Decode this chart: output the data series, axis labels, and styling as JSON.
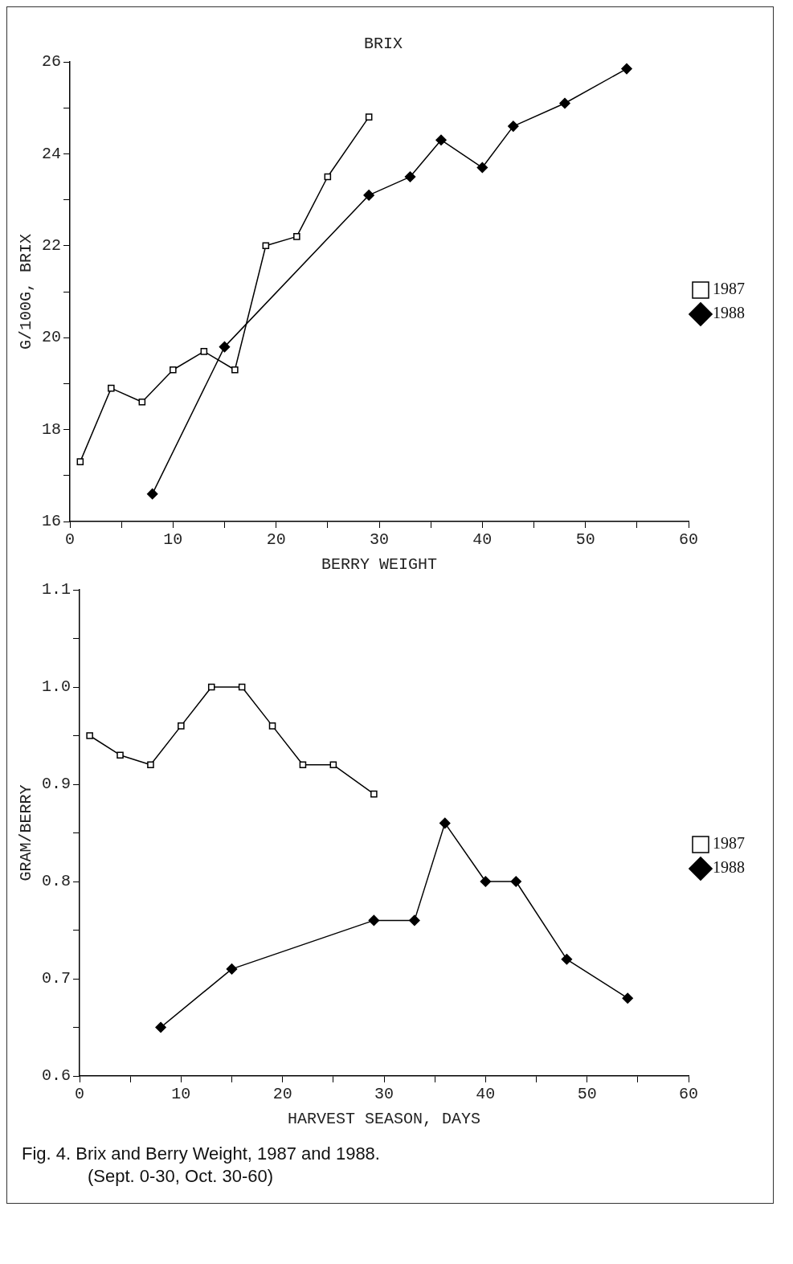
{
  "chart_data": [
    {
      "type": "line",
      "title": "BRIX",
      "xlabel": "BERRY WEIGHT",
      "ylabel": "G/100G, BRIX",
      "xlim": [
        0,
        60
      ],
      "xticks": [
        0,
        {
          "value": 5,
          "label": null
        },
        10,
        {
          "value": 15,
          "label": null
        },
        20,
        {
          "value": 25,
          "label": null
        },
        30,
        {
          "value": 35,
          "label": null
        },
        40,
        {
          "value": 45,
          "label": null
        },
        50,
        {
          "value": 55,
          "label": null
        },
        60
      ],
      "ylim": [
        16,
        26
      ],
      "yticks": [
        16,
        {
          "value": 17,
          "label": null
        },
        18,
        {
          "value": 19,
          "label": null
        },
        20,
        {
          "value": 21,
          "label": null
        },
        22,
        {
          "value": 23,
          "label": null
        },
        24,
        {
          "value": 25,
          "label": null
        },
        26
      ],
      "grid": false,
      "legend": "right",
      "line_style": "solid",
      "series": [
        {
          "name": "1987",
          "color": "#000000",
          "marker": "square",
          "x": [
            1,
            4,
            7,
            10,
            13,
            16,
            19,
            22,
            25,
            29
          ],
          "values": [
            17.3,
            18.9,
            18.6,
            19.3,
            19.7,
            19.3,
            22.0,
            22.2,
            23.5,
            24.8
          ]
        },
        {
          "name": "1988",
          "color": "#000000",
          "marker": "diamond",
          "x": [
            8,
            15,
            29,
            33,
            36,
            40,
            43,
            48,
            54
          ],
          "values": [
            16.6,
            19.8,
            23.1,
            23.5,
            24.3,
            23.7,
            24.6,
            25.1,
            25.85
          ]
        }
      ]
    },
    {
      "type": "line",
      "xlabel": "HARVEST SEASON, DAYS",
      "ylabel": "GRAM/BERRY",
      "xlim": [
        0,
        60
      ],
      "xticks": [
        0,
        {
          "value": 5,
          "label": null
        },
        10,
        {
          "value": 15,
          "label": null
        },
        20,
        {
          "value": 25,
          "label": null
        },
        30,
        {
          "value": 35,
          "label": null
        },
        40,
        {
          "value": 45,
          "label": null
        },
        50,
        {
          "value": 55,
          "label": null
        },
        60
      ],
      "ylim": [
        0.6,
        1.1
      ],
      "yticks": [
        {
          "value": 0.6,
          "label": "0.6"
        },
        {
          "value": 0.65,
          "label": null
        },
        {
          "value": 0.7,
          "label": "0.7"
        },
        {
          "value": 0.75,
          "label": null
        },
        {
          "value": 0.8,
          "label": "0.8"
        },
        {
          "value": 0.85,
          "label": null
        },
        {
          "value": 0.9,
          "label": "0.9"
        },
        {
          "value": 0.95,
          "label": null
        },
        {
          "value": 1.0,
          "label": "1.0"
        },
        {
          "value": 1.05,
          "label": null
        },
        {
          "value": 1.1,
          "label": "1.1"
        }
      ],
      "grid": false,
      "legend": "right",
      "line_style": "solid",
      "series": [
        {
          "name": "1987",
          "color": "#000000",
          "marker": "square",
          "x": [
            1,
            4,
            7,
            10,
            13,
            16,
            19,
            22,
            25,
            29
          ],
          "values": [
            0.95,
            0.93,
            0.92,
            0.96,
            1.0,
            1.0,
            0.96,
            0.92,
            0.92,
            0.89
          ]
        },
        {
          "name": "1988",
          "color": "#000000",
          "marker": "diamond",
          "x": [
            8,
            15,
            29,
            33,
            36,
            40,
            43,
            48,
            54
          ],
          "values": [
            0.65,
            0.71,
            0.76,
            0.76,
            0.86,
            0.8,
            0.8,
            0.72,
            0.68
          ]
        }
      ],
      "annotations": [
        "Fig. 4.  Brix and Berry Weight, 1987 and 1988.",
        "(Sept. 0-30, Oct. 30-60)"
      ]
    }
  ]
}
